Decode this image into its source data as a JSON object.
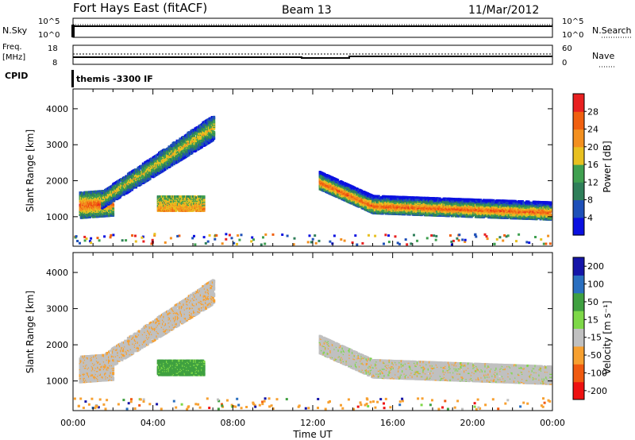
{
  "header": {
    "station": "Fort Hays East (fitACF)",
    "beam": "Beam 13",
    "date": "11/Mar/2012"
  },
  "noise_panel": {
    "left_label": "N.Sky",
    "left_ticks": [
      "10^5",
      "10^0"
    ],
    "right_label": "N.Search",
    "right_ticks": [
      "10^5",
      "10^0"
    ]
  },
  "freq_panel": {
    "left_label_1": "Freq.",
    "left_label_2": "[MHz]",
    "left_ticks": [
      "18",
      "8"
    ],
    "right_label": "Nave",
    "right_ticks": [
      "60",
      "0"
    ]
  },
  "cpid": {
    "label": "CPID",
    "program": "themis -3300 IF"
  },
  "colors": {
    "power_scale": [
      "#0a10e0",
      "#1e50b8",
      "#2f7f5a",
      "#40a050",
      "#e8c020",
      "#f39020",
      "#f06010",
      "#e82020"
    ],
    "velocity_scale": [
      "#ee1111",
      "#f05a10",
      "#f7a030",
      "#c0c0c0",
      "#7ed848",
      "#3fa040",
      "#2a6fc0",
      "#1515a8"
    ]
  },
  "chart_data": [
    {
      "type": "heatmap",
      "title": "Power",
      "ylabel": "Slant Range [km]",
      "xlabel": "Time UT",
      "x_ticks": [
        "00:00",
        "04:00",
        "08:00",
        "12:00",
        "16:00",
        "20:00",
        "00:00"
      ],
      "y_ticks": [
        "1000",
        "2000",
        "3000",
        "4000"
      ],
      "xlim_hours": [
        0,
        24
      ],
      "ylim_km": [
        180,
        4550
      ],
      "colorbar": {
        "label": "Power [dB]",
        "tick_labels": [
          "4",
          "8",
          "12",
          "16",
          "20",
          "24",
          "28"
        ]
      },
      "echo_features": [
        {
          "t": [
            0.3,
            2.0
          ],
          "range_km": [
            1050,
            1700
          ],
          "peak_db": 30
        },
        {
          "t": [
            2.0,
            7.0
          ],
          "range_km": [
            1700,
            3600
          ],
          "peak_db": 22
        },
        {
          "t": [
            4.2,
            6.5
          ],
          "range_km": [
            1200,
            1600
          ],
          "peak_db": 22
        },
        {
          "t": [
            12.3,
            24.0
          ],
          "range_km": [
            900,
            2300
          ],
          "peak_db": 30
        }
      ]
    },
    {
      "type": "heatmap",
      "title": "Velocity",
      "ylabel": "Slant Range [km]",
      "xlabel": "Time UT",
      "x_ticks": [
        "00:00",
        "04:00",
        "08:00",
        "12:00",
        "16:00",
        "20:00",
        "00:00"
      ],
      "y_ticks": [
        "1000",
        "2000",
        "3000",
        "4000"
      ],
      "xlim_hours": [
        0,
        24
      ],
      "ylim_km": [
        180,
        4550
      ],
      "colorbar": {
        "label": "Velocity [m s⁻¹]",
        "tick_labels": [
          "-200",
          "-100",
          "-50",
          "-15",
          "15",
          "50",
          "100",
          "200"
        ]
      },
      "echo_features": [
        {
          "t": [
            0.3,
            7.0
          ],
          "range_km": [
            1100,
            3600
          ],
          "velocity_ms": 0
        },
        {
          "t": [
            4.2,
            6.5
          ],
          "range_km": [
            1200,
            1600
          ],
          "velocity_ms": 60
        },
        {
          "t": [
            12.3,
            24.0
          ],
          "range_km": [
            900,
            2300
          ],
          "velocity_ms": 0
        }
      ]
    }
  ]
}
